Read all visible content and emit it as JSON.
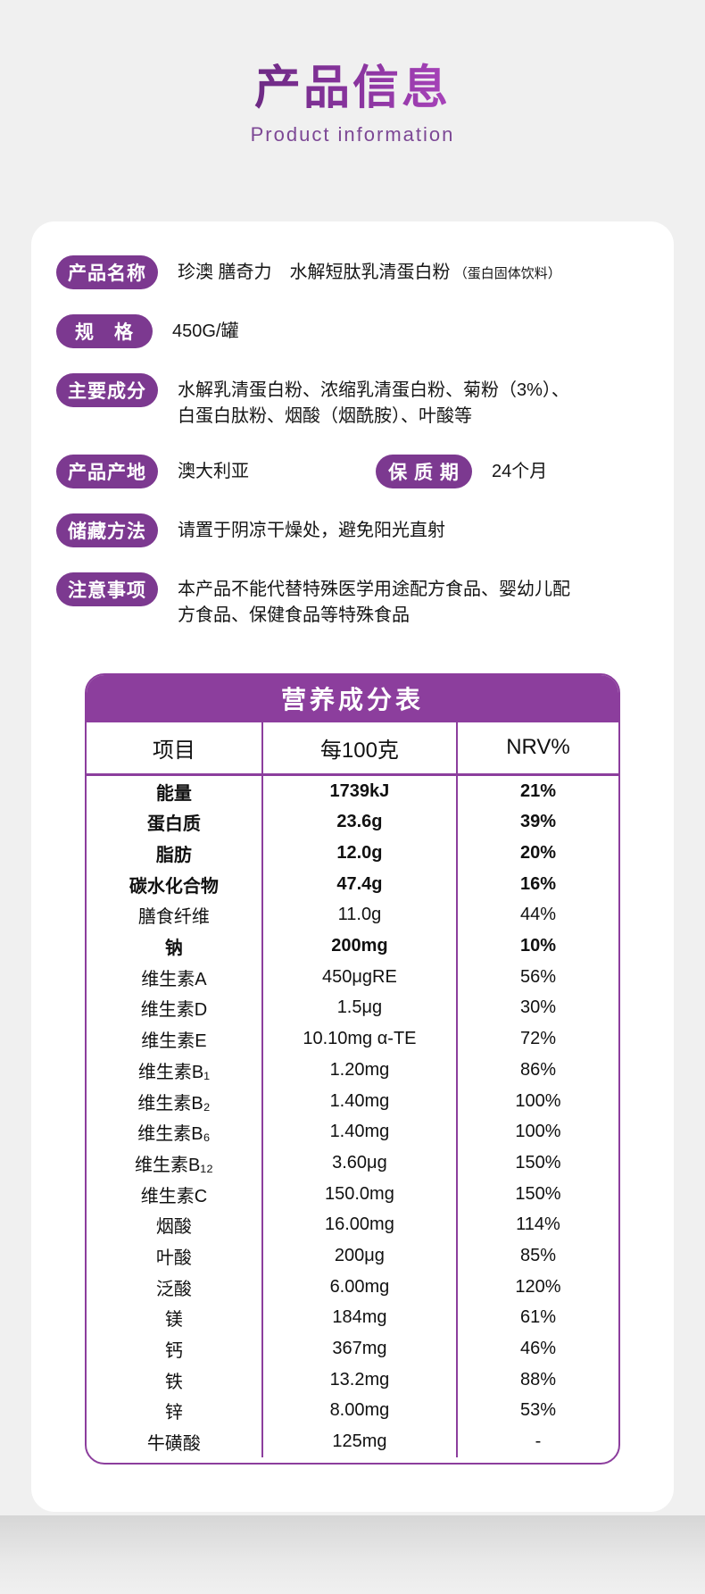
{
  "header": {
    "title": "产品信息",
    "subtitle": "Product  information"
  },
  "colors": {
    "page_background": "#f0f0f0",
    "card_background": "#ffffff",
    "pill_purple": "#7c3990",
    "table_purple": "#8c3e9d",
    "title_gradient_start": "#6d2a84",
    "title_gradient_end": "#a843ba"
  },
  "info": {
    "rows": [
      {
        "label": "产品名称",
        "value": "珍澳 膳奇力　水解短肽乳清蛋白粉",
        "value_small": "（蛋白固体饮料）"
      },
      {
        "label": "规　格",
        "value": "450G/罐"
      },
      {
        "label": "主要成分",
        "value": "水解乳清蛋白粉、浓缩乳清蛋白粉、菊粉（3%）、白蛋白肽粉、烟酸（烟酰胺）、叶酸等"
      },
      {
        "label": "产品产地",
        "value": "澳大利亚",
        "label2": "保 质 期",
        "value2": "24个月"
      },
      {
        "label": "储藏方法",
        "value": "请置于阴凉干燥处，避免阳光直射"
      },
      {
        "label": "注意事项",
        "value": "本产品不能代替特殊医学用途配方食品、婴幼儿配方食品、保健食品等特殊食品"
      }
    ]
  },
  "nutrition_table": {
    "title": "营养成分表",
    "columns": [
      "项目",
      "每100克",
      "NRV%"
    ],
    "rows": [
      {
        "item": "能量",
        "per100g": "1739kJ",
        "nrv": "21%",
        "bold": true
      },
      {
        "item": "蛋白质",
        "per100g": "23.6g",
        "nrv": "39%",
        "bold": true
      },
      {
        "item": "脂肪",
        "per100g": "12.0g",
        "nrv": "20%",
        "bold": true
      },
      {
        "item": "碳水化合物",
        "per100g": "47.4g",
        "nrv": "16%",
        "bold": true
      },
      {
        "item": "膳食纤维",
        "per100g": "11.0g",
        "nrv": "44%",
        "bold": false
      },
      {
        "item": "钠",
        "per100g": "200mg",
        "nrv": "10%",
        "bold": true
      },
      {
        "item": "维生素A",
        "per100g": "450μgRE",
        "nrv": "56%",
        "bold": false
      },
      {
        "item": "维生素D",
        "per100g": "1.5μg",
        "nrv": "30%",
        "bold": false
      },
      {
        "item": "维生素E",
        "per100g": "10.10mg α-TE",
        "nrv": "72%",
        "bold": false
      },
      {
        "item": "维生素B₁",
        "per100g": "1.20mg",
        "nrv": "86%",
        "bold": false
      },
      {
        "item": "维生素B₂",
        "per100g": "1.40mg",
        "nrv": "100%",
        "bold": false
      },
      {
        "item": "维生素B₆",
        "per100g": "1.40mg",
        "nrv": "100%",
        "bold": false
      },
      {
        "item": "维生素B₁₂",
        "per100g": "3.60μg",
        "nrv": "150%",
        "bold": false
      },
      {
        "item": "维生素C",
        "per100g": "150.0mg",
        "nrv": "150%",
        "bold": false
      },
      {
        "item": "烟酸",
        "per100g": "16.00mg",
        "nrv": "114%",
        "bold": false
      },
      {
        "item": "叶酸",
        "per100g": "200μg",
        "nrv": "85%",
        "bold": false
      },
      {
        "item": "泛酸",
        "per100g": "6.00mg",
        "nrv": "120%",
        "bold": false
      },
      {
        "item": "镁",
        "per100g": "184mg",
        "nrv": "61%",
        "bold": false
      },
      {
        "item": "钙",
        "per100g": "367mg",
        "nrv": "46%",
        "bold": false
      },
      {
        "item": "铁",
        "per100g": "13.2mg",
        "nrv": "88%",
        "bold": false
      },
      {
        "item": "锌",
        "per100g": "8.00mg",
        "nrv": "53%",
        "bold": false
      },
      {
        "item": "牛磺酸",
        "per100g": "125mg",
        "nrv": "-",
        "bold": false
      }
    ]
  }
}
